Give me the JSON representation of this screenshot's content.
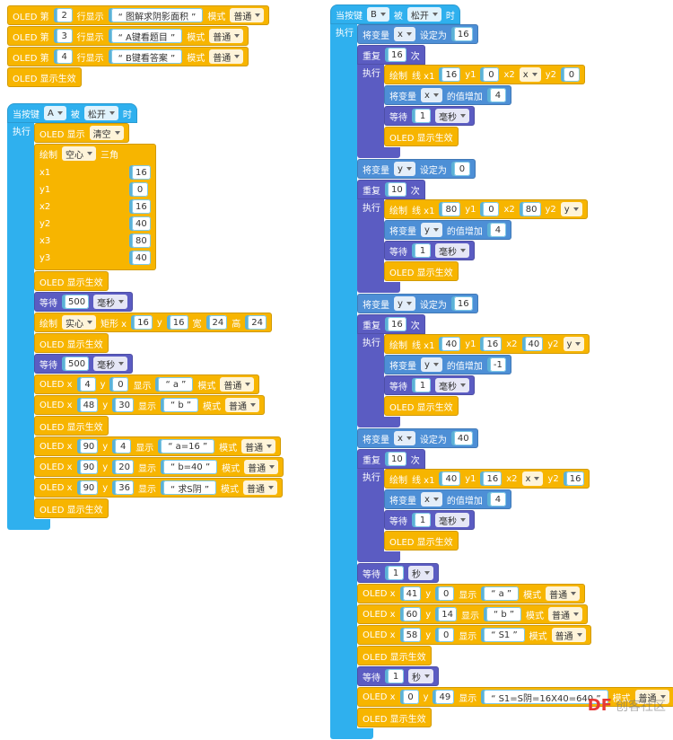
{
  "stacks": [
    {
      "blocks": [
        {
          "color": "#f7b500",
          "parts": [
            "OLED 第",
            {
              "num": 2
            },
            "行显示",
            {
              "str": "“ 图解求阴影面积 ”"
            },
            "模式",
            {
              "menu": "普通"
            }
          ]
        },
        {
          "color": "#f7b500",
          "parts": [
            "OLED 第",
            {
              "num": 3
            },
            "行显示",
            {
              "str": "“ A键看题目 ”"
            },
            "模式",
            {
              "menu": "普通"
            }
          ]
        },
        {
          "color": "#f7b500",
          "parts": [
            "OLED 第",
            {
              "num": 4
            },
            "行显示",
            {
              "str": "“ B键看答案 ”"
            },
            "模式",
            {
              "menu": "普通"
            }
          ]
        },
        {
          "color": "#f7b500",
          "parts": [
            "OLED 显示生效"
          ]
        }
      ]
    },
    {
      "blocks": [
        {
          "color": "#2fb0ee",
          "parts": [
            "当按键",
            {
              "menu": "A"
            },
            "被",
            {
              "menu": "松开"
            },
            "时"
          ],
          "body_label": "执行",
          "body": [
            {
              "color": "#f7b500",
              "parts": [
                "OLED 显示",
                {
                  "menu": "清空"
                }
              ]
            },
            {
              "color": "#f7b500",
              "parts": [
                "绘制",
                {
                  "menu": "空心"
                },
                "三角"
              ],
              "args": [
                [
                  "x1",
                  {
                    "num": 16
                  }
                ],
                [
                  "y1",
                  {
                    "num": 0
                  }
                ],
                [
                  "x2",
                  {
                    "num": 16
                  }
                ],
                [
                  "y2",
                  {
                    "num": 40
                  }
                ],
                [
                  "x3",
                  {
                    "num": 80
                  }
                ],
                [
                  "y3",
                  {
                    "num": 40
                  }
                ]
              ]
            },
            {
              "color": "#f7b500",
              "parts": [
                "OLED 显示生效"
              ]
            },
            {
              "color": "#5b5cc2",
              "parts": [
                "等待",
                {
                  "num": 500
                },
                {
                  "menu": "毫秒"
                }
              ]
            },
            {
              "color": "#f7b500",
              "parts": [
                "绘制",
                {
                  "menu": "实心"
                },
                "矩形 x",
                {
                  "num": 16
                },
                "y",
                {
                  "num": 16
                },
                "宽",
                {
                  "num": 24
                },
                "高",
                {
                  "num": 24
                }
              ]
            },
            {
              "color": "#f7b500",
              "parts": [
                "OLED 显示生效"
              ]
            },
            {
              "color": "#5b5cc2",
              "parts": [
                "等待",
                {
                  "num": 500
                },
                {
                  "menu": "毫秒"
                }
              ]
            },
            {
              "color": "#f7b500",
              "parts": [
                "OLED x",
                {
                  "num": 4
                },
                "y",
                {
                  "num": 0
                },
                "显示",
                {
                  "str": "“ a ”"
                },
                "模式",
                {
                  "menu": "普通"
                }
              ]
            },
            {
              "color": "#f7b500",
              "parts": [
                "OLED x",
                {
                  "num": 48
                },
                "y",
                {
                  "num": 30
                },
                "显示",
                {
                  "str": "“ b ”"
                },
                "模式",
                {
                  "menu": "普通"
                }
              ]
            },
            {
              "color": "#f7b500",
              "parts": [
                "OLED 显示生效"
              ]
            },
            {
              "color": "#f7b500",
              "parts": [
                "OLED x",
                {
                  "num": 90
                },
                "y",
                {
                  "num": 4
                },
                "显示",
                {
                  "str": "“ a=16 ”"
                },
                "模式",
                {
                  "menu": "普通"
                }
              ]
            },
            {
              "color": "#f7b500",
              "parts": [
                "OLED x",
                {
                  "num": 90
                },
                "y",
                {
                  "num": 20
                },
                "显示",
                {
                  "str": "“ b=40 ”"
                },
                "模式",
                {
                  "menu": "普通"
                }
              ]
            },
            {
              "color": "#f7b500",
              "parts": [
                "OLED x",
                {
                  "num": 90
                },
                "y",
                {
                  "num": 36
                },
                "显示",
                {
                  "str": "“ 求S阴 ”"
                },
                "模式",
                {
                  "menu": "普通"
                }
              ]
            },
            {
              "color": "#f7b500",
              "parts": [
                "OLED 显示生效"
              ]
            }
          ]
        }
      ]
    },
    {
      "blocks": [
        {
          "color": "#2fb0ee",
          "parts": [
            "当按键",
            {
              "menu": "B"
            },
            "被",
            {
              "menu": "松开"
            },
            "时"
          ],
          "body_label": "执行",
          "body": [
            {
              "color": "#4d8fd6",
              "parts": [
                "将变量",
                {
                  "menu": "x"
                },
                "设定为",
                {
                  "num": 16
                }
              ]
            },
            {
              "color": "#5b5cc2",
              "parts": [
                "重复",
                {
                  "num": 16
                },
                "次"
              ],
              "body_label": "执行",
              "body": [
                {
                  "color": "#f7b500",
                  "parts": [
                    "绘制",
                    "线 x1",
                    {
                      "num": 16
                    },
                    "y1",
                    {
                      "num": 0
                    },
                    "x2",
                    {
                      "menu": "x"
                    },
                    "y2",
                    {
                      "num": 0
                    }
                  ]
                },
                {
                  "color": "#4d8fd6",
                  "parts": [
                    "将变量",
                    {
                      "menu": "x"
                    },
                    "的值增加",
                    {
                      "num": 4
                    }
                  ]
                },
                {
                  "color": "#5b5cc2",
                  "parts": [
                    "等待",
                    {
                      "num": 1
                    },
                    {
                      "menu": "毫秒"
                    }
                  ]
                },
                {
                  "color": "#f7b500",
                  "parts": [
                    "OLED 显示生效"
                  ]
                }
              ]
            },
            {
              "color": "#4d8fd6",
              "parts": [
                "将变量",
                {
                  "menu": "y"
                },
                "设定为",
                {
                  "num": 0
                }
              ]
            },
            {
              "color": "#5b5cc2",
              "parts": [
                "重复",
                {
                  "num": 10
                },
                "次"
              ],
              "body_label": "执行",
              "body": [
                {
                  "color": "#f7b500",
                  "parts": [
                    "绘制",
                    "线 x1",
                    {
                      "num": 80
                    },
                    "y1",
                    {
                      "num": 0
                    },
                    "x2",
                    {
                      "num": 80
                    },
                    "y2",
                    {
                      "menu": "y"
                    }
                  ]
                },
                {
                  "color": "#4d8fd6",
                  "parts": [
                    "将变量",
                    {
                      "menu": "y"
                    },
                    "的值增加",
                    {
                      "num": 4
                    }
                  ]
                },
                {
                  "color": "#5b5cc2",
                  "parts": [
                    "等待",
                    {
                      "num": 1
                    },
                    {
                      "menu": "毫秒"
                    }
                  ]
                },
                {
                  "color": "#f7b500",
                  "parts": [
                    "OLED 显示生效"
                  ]
                }
              ]
            },
            {
              "color": "#4d8fd6",
              "parts": [
                "将变量",
                {
                  "menu": "y"
                },
                "设定为",
                {
                  "num": 16
                }
              ]
            },
            {
              "color": "#5b5cc2",
              "parts": [
                "重复",
                {
                  "num": 16
                },
                "次"
              ],
              "body_label": "执行",
              "body": [
                {
                  "color": "#f7b500",
                  "parts": [
                    "绘制",
                    "线 x1",
                    {
                      "num": 40
                    },
                    "y1",
                    {
                      "num": 16
                    },
                    "x2",
                    {
                      "num": 40
                    },
                    "y2",
                    {
                      "menu": "y"
                    }
                  ]
                },
                {
                  "color": "#4d8fd6",
                  "parts": [
                    "将变量",
                    {
                      "menu": "y"
                    },
                    "的值增加",
                    {
                      "num": -1
                    }
                  ]
                },
                {
                  "color": "#5b5cc2",
                  "parts": [
                    "等待",
                    {
                      "num": 1
                    },
                    {
                      "menu": "毫秒"
                    }
                  ]
                },
                {
                  "color": "#f7b500",
                  "parts": [
                    "OLED 显示生效"
                  ]
                }
              ]
            },
            {
              "color": "#4d8fd6",
              "parts": [
                "将变量",
                {
                  "menu": "x"
                },
                "设定为",
                {
                  "num": 40
                }
              ]
            },
            {
              "color": "#5b5cc2",
              "parts": [
                "重复",
                {
                  "num": 10
                },
                "次"
              ],
              "body_label": "执行",
              "body": [
                {
                  "color": "#f7b500",
                  "parts": [
                    "绘制",
                    "线 x1",
                    {
                      "num": 40
                    },
                    "y1",
                    {
                      "num": 16
                    },
                    "x2",
                    {
                      "menu": "x"
                    },
                    "y2",
                    {
                      "num": 16
                    }
                  ]
                },
                {
                  "color": "#4d8fd6",
                  "parts": [
                    "将变量",
                    {
                      "menu": "x"
                    },
                    "的值增加",
                    {
                      "num": 4
                    }
                  ]
                },
                {
                  "color": "#5b5cc2",
                  "parts": [
                    "等待",
                    {
                      "num": 1
                    },
                    {
                      "menu": "毫秒"
                    }
                  ]
                },
                {
                  "color": "#f7b500",
                  "parts": [
                    "OLED 显示生效"
                  ]
                }
              ]
            },
            {
              "color": "#5b5cc2",
              "parts": [
                "等待",
                {
                  "num": 1
                },
                {
                  "menu": "秒"
                }
              ]
            },
            {
              "color": "#f7b500",
              "parts": [
                "OLED x",
                {
                  "num": 41
                },
                "y",
                {
                  "num": 0
                },
                "显示",
                {
                  "str": "“ a ”"
                },
                "模式",
                {
                  "menu": "普通"
                }
              ]
            },
            {
              "color": "#f7b500",
              "parts": [
                "OLED x",
                {
                  "num": 60
                },
                "y",
                {
                  "num": 14
                },
                "显示",
                {
                  "str": "“ b ”"
                },
                "模式",
                {
                  "menu": "普通"
                }
              ]
            },
            {
              "color": "#f7b500",
              "parts": [
                "OLED x",
                {
                  "num": 58
                },
                "y",
                {
                  "num": 0
                },
                "显示",
                {
                  "str": "“ S1 ”"
                },
                "模式",
                {
                  "menu": "普通"
                }
              ]
            },
            {
              "color": "#f7b500",
              "parts": [
                "OLED 显示生效"
              ]
            },
            {
              "color": "#5b5cc2",
              "parts": [
                "等待",
                {
                  "num": 1
                },
                {
                  "menu": "秒"
                }
              ]
            },
            {
              "color": "#f7b500",
              "parts": [
                "OLED x",
                {
                  "num": 0
                },
                "y",
                {
                  "num": 49
                },
                "显示",
                {
                  "str": "“ S1=S阴=16X40=640 ”"
                },
                "模式",
                {
                  "menu": "普通"
                }
              ]
            },
            {
              "color": "#f7b500",
              "parts": [
                "OLED 显示生效"
              ]
            }
          ]
        }
      ]
    }
  ],
  "watermark": {
    "logo": "DF",
    "text": "创客社区"
  }
}
